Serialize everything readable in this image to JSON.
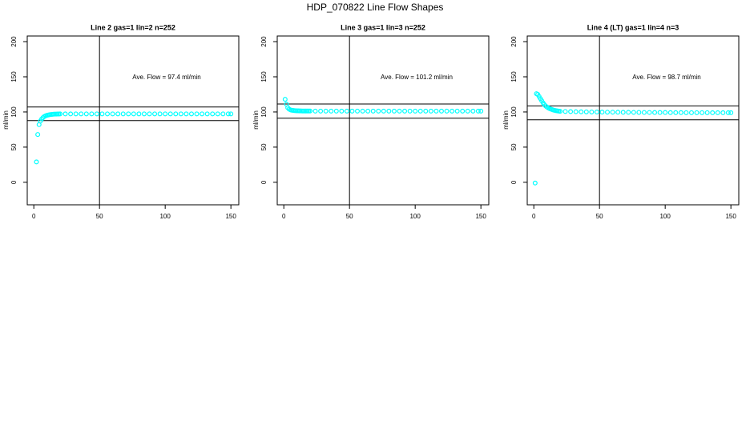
{
  "title": "HDP_070822  Line Flow Shapes",
  "chart_data": [
    {
      "type": "scatter",
      "title": "Line 2 gas=1 lin=2 n=252",
      "ylabel": "ml/min",
      "annotation": "Ave. Flow =  97.4  ml/min",
      "color": "#00ffff",
      "xlim": [
        -5,
        156
      ],
      "ylim": [
        -32,
        208
      ],
      "xticks": [
        0,
        50,
        100,
        150
      ],
      "yticks": [
        0,
        50,
        100,
        150,
        200
      ],
      "vline": 50,
      "hlines": [
        107.1,
        87.7
      ],
      "x": [
        2,
        3,
        4,
        5,
        6,
        7,
        8,
        9,
        10,
        11,
        12,
        13,
        14,
        15,
        16,
        17,
        18,
        19,
        20,
        24,
        28,
        32,
        36,
        40,
        44,
        48,
        52,
        56,
        60,
        64,
        68,
        72,
        76,
        80,
        84,
        88,
        92,
        96,
        100,
        104,
        108,
        112,
        116,
        120,
        124,
        128,
        132,
        136,
        140,
        144,
        148,
        150
      ],
      "values": [
        29,
        68,
        82,
        87,
        90,
        92,
        93.5,
        94.5,
        95.2,
        95.7,
        96.1,
        96.4,
        96.6,
        96.8,
        96.9,
        97,
        97.1,
        97.1,
        97.2,
        97.2,
        97.2,
        97.3,
        97.3,
        97.3,
        97.3,
        97.3,
        97.3,
        97.3,
        97.3,
        97.3,
        97.3,
        97.3,
        97.3,
        97.3,
        97.3,
        97.3,
        97.3,
        97.3,
        97.3,
        97.3,
        97.3,
        97.3,
        97.3,
        97.3,
        97.3,
        97.3,
        97.3,
        97.3,
        97.3,
        97.3,
        97.3,
        97.3
      ]
    },
    {
      "type": "scatter",
      "title": "Line 3 gas=1 lin=3 n=252",
      "ylabel": "ml/min",
      "annotation": "Ave. Flow =  101.2  ml/min",
      "color": "#00ffff",
      "xlim": [
        -5,
        156
      ],
      "ylim": [
        -32,
        208
      ],
      "xticks": [
        0,
        50,
        100,
        150
      ],
      "yticks": [
        0,
        50,
        100,
        150,
        200
      ],
      "vline": 50,
      "hlines": [
        111.3,
        91.1
      ],
      "x": [
        1,
        2,
        3,
        4,
        5,
        6,
        7,
        8,
        9,
        10,
        11,
        12,
        13,
        14,
        15,
        16,
        17,
        18,
        19,
        20,
        24,
        28,
        32,
        36,
        40,
        44,
        48,
        52,
        56,
        60,
        64,
        68,
        72,
        76,
        80,
        84,
        88,
        92,
        96,
        100,
        104,
        108,
        112,
        116,
        120,
        124,
        128,
        132,
        136,
        140,
        144,
        148,
        150
      ],
      "values": [
        118,
        111,
        106,
        104,
        103,
        102.5,
        102.2,
        102,
        101.8,
        101.7,
        101.6,
        101.5,
        101.5,
        101.4,
        101.4,
        101.4,
        101.3,
        101.3,
        101.3,
        101.3,
        101.2,
        101.2,
        101.2,
        101.2,
        101.2,
        101.2,
        101.2,
        101.2,
        101.2,
        101.2,
        101.2,
        101.2,
        101.2,
        101.2,
        101.2,
        101.2,
        101.2,
        101.2,
        101.2,
        101.2,
        101.2,
        101.2,
        101.2,
        101.2,
        101.2,
        101.2,
        101.2,
        101.2,
        101.2,
        101.2,
        101.2,
        101.2,
        101.2
      ]
    },
    {
      "type": "scatter",
      "title": "Line 4 (LT) gas=1 lin=4 n=3",
      "ylabel": "ml/min",
      "annotation": "Ave. Flow =  98.7  ml/min",
      "color": "#00ffff",
      "xlim": [
        -5,
        156
      ],
      "ylim": [
        -32,
        208
      ],
      "xticks": [
        0,
        50,
        100,
        150
      ],
      "yticks": [
        0,
        50,
        100,
        150,
        200
      ],
      "vline": 50,
      "hlines": [
        108.6,
        88.8
      ],
      "x": [
        1,
        2,
        3,
        4,
        5,
        6,
        7,
        8,
        9,
        10,
        11,
        12,
        13,
        14,
        15,
        16,
        17,
        18,
        19,
        20,
        24,
        28,
        32,
        36,
        40,
        44,
        48,
        52,
        56,
        60,
        64,
        68,
        72,
        76,
        80,
        84,
        88,
        92,
        96,
        100,
        104,
        108,
        112,
        116,
        120,
        124,
        128,
        132,
        136,
        140,
        144,
        148,
        150
      ],
      "values": [
        -1,
        126,
        125,
        122,
        119,
        116,
        113,
        110.5,
        108.5,
        107,
        105.8,
        104.8,
        104,
        103.3,
        102.7,
        102.2,
        101.8,
        101.5,
        101.2,
        101,
        100.7,
        100.5,
        100.3,
        100.2,
        100.1,
        100,
        99.9,
        99.8,
        99.7,
        99.7,
        99.6,
        99.5,
        99.5,
        99.4,
        99.4,
        99.3,
        99.3,
        99.2,
        99.2,
        99.2,
        99.1,
        99.1,
        99.1,
        99,
        99,
        99,
        99,
        99,
        98.9,
        98.9,
        98.9,
        98.9,
        98.9
      ]
    }
  ]
}
